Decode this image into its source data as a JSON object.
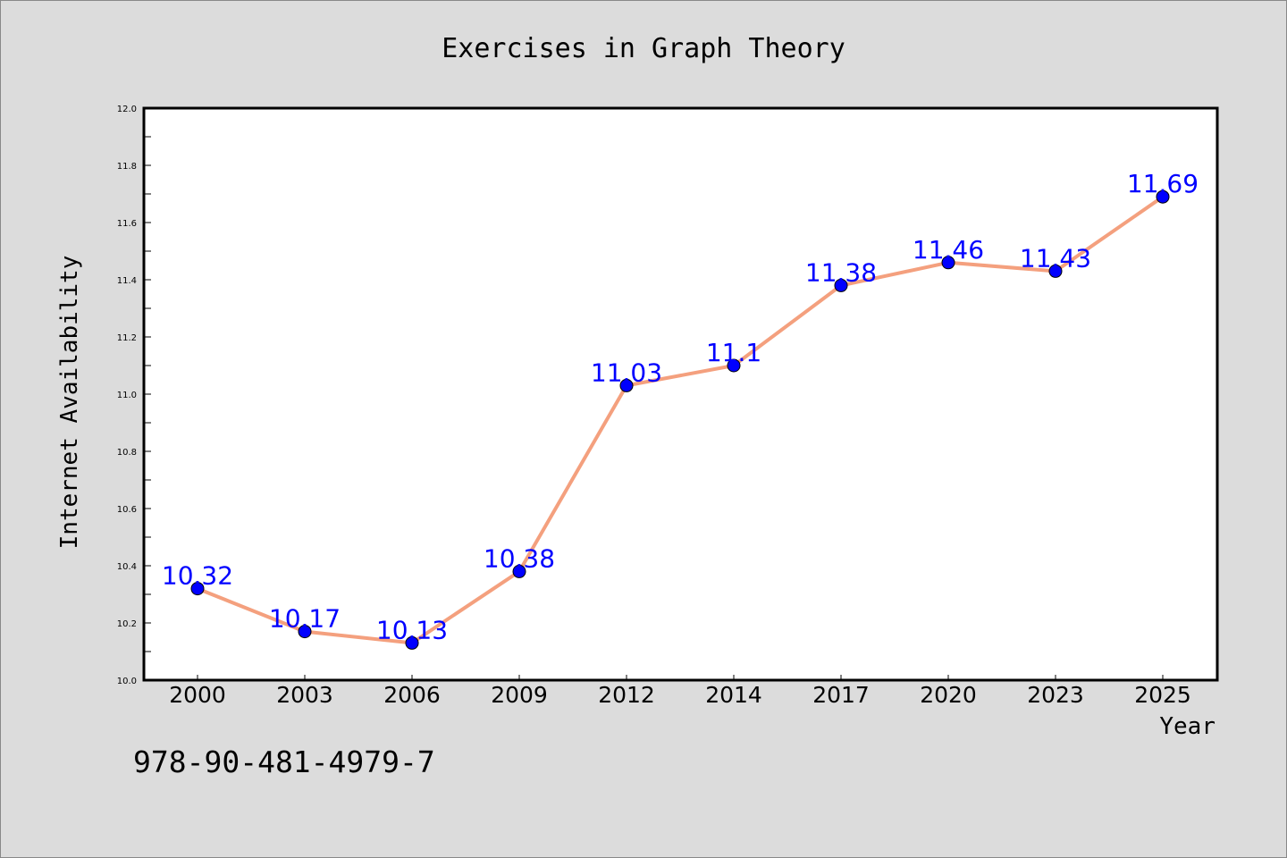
{
  "chart_data": {
    "type": "line",
    "title": "Exercises in Graph Theory",
    "xlabel": "Year",
    "ylabel": "Internet Availability",
    "categories": [
      "2000",
      "2003",
      "2006",
      "2009",
      "2012",
      "2014",
      "2017",
      "2020",
      "2023",
      "2025"
    ],
    "series": [
      {
        "values": [
          10.32,
          10.17,
          10.13,
          10.38,
          11.03,
          11.1,
          11.38,
          11.46,
          11.43,
          11.69
        ],
        "data_labels": [
          "10.32",
          "10.17",
          "10.13",
          "10.38",
          "11.03",
          "11.1",
          "11.38",
          "11.46",
          "11.43",
          "11.69"
        ],
        "line_color": "#f4a07e",
        "marker_color": "#0000ff"
      }
    ],
    "ylim": [
      10.0,
      12.0
    ],
    "yticks": [
      "10.0",
      "10.2",
      "10.4",
      "10.6",
      "10.8",
      "11.0",
      "11.2",
      "11.4",
      "11.6",
      "11.8",
      "12.0"
    ],
    "grid": false,
    "label_color": "#0000ff"
  },
  "footer": {
    "isbn": "978-90-481-4979-7"
  },
  "colors": {
    "background": "#dcdcdc",
    "plot_background": "#ffffff"
  }
}
